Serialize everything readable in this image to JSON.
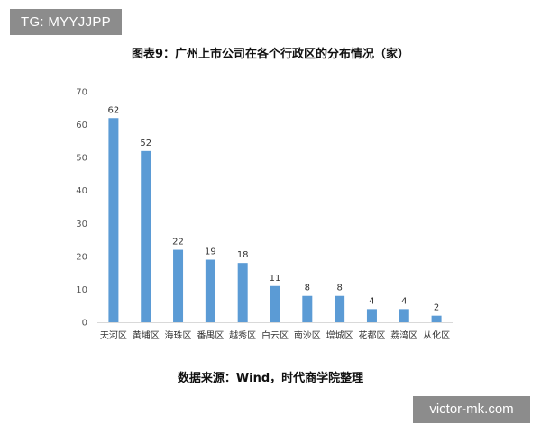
{
  "watermarks": {
    "top_left": "TG: MYYJJPP",
    "bottom_right": "victor-mk.com"
  },
  "chart_data": {
    "type": "bar",
    "title": "图表9：广州上市公司在各个行政区的分布情况（家）",
    "categories": [
      "天河区",
      "黄埔区",
      "海珠区",
      "番禺区",
      "越秀区",
      "白云区",
      "南沙区",
      "增城区",
      "花都区",
      "荔湾区",
      "从化区"
    ],
    "values": [
      62,
      52,
      22,
      19,
      18,
      11,
      8,
      8,
      4,
      4,
      2
    ],
    "y_ticks": [
      "0",
      "10",
      "20",
      "30",
      "40",
      "50",
      "60",
      "70"
    ],
    "ylim": [
      0,
      70
    ],
    "grid": false,
    "legend": "none",
    "bar_color": "#5b9bd5",
    "axis_color": "#d9d9d9",
    "source": "数据来源：Wind，时代商学院整理"
  }
}
